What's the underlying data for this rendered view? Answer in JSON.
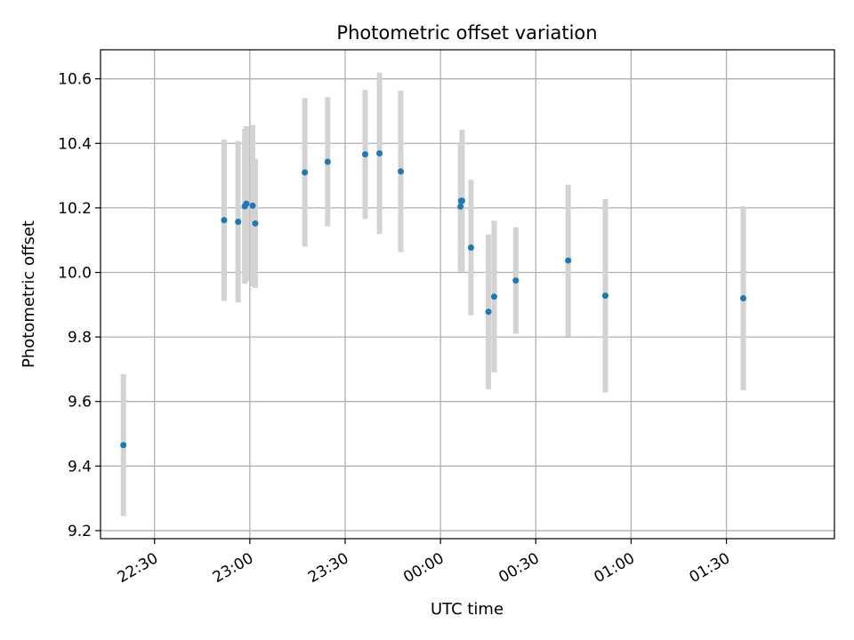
{
  "chart_data": {
    "type": "scatter",
    "title": "Photometric offset variation",
    "xlabel": "UTC time",
    "ylabel": "Photometric offset",
    "grid": true,
    "x_range": [
      "22:13",
      "02:04"
    ],
    "xlim": [
      1333,
      1564
    ],
    "ylim": [
      9.175,
      10.69
    ],
    "x_ticks": [
      {
        "label": "22:30",
        "value": 1350
      },
      {
        "label": "23:00",
        "value": 1380
      },
      {
        "label": "23:30",
        "value": 1410
      },
      {
        "label": "00:00",
        "value": 1440
      },
      {
        "label": "00:30",
        "value": 1470
      },
      {
        "label": "01:00",
        "value": 1500
      },
      {
        "label": "01:30",
        "value": 1530
      }
    ],
    "y_ticks": [
      {
        "label": "9.2",
        "value": 9.2
      },
      {
        "label": "9.4",
        "value": 9.4
      },
      {
        "label": "9.6",
        "value": 9.6
      },
      {
        "label": "9.8",
        "value": 9.8
      },
      {
        "label": "10.0",
        "value": 10.0
      },
      {
        "label": "10.2",
        "value": 10.2
      },
      {
        "label": "10.4",
        "value": 10.4
      },
      {
        "label": "10.6",
        "value": 10.6
      }
    ],
    "colors": {
      "points": "#1f77b4",
      "errorbars": "#d3d3d3",
      "grid": "#b0b0b0"
    },
    "points": [
      {
        "time": "22:20",
        "x": 1340.2,
        "y": 9.465,
        "err": 0.22
      },
      {
        "time": "22:52",
        "x": 1371.9,
        "y": 10.162,
        "err": 0.25
      },
      {
        "time": "22:56",
        "x": 1376.3,
        "y": 10.157,
        "err": 0.25
      },
      {
        "time": "22:58",
        "x": 1378.4,
        "y": 10.205,
        "err": 0.24
      },
      {
        "time": "22:59",
        "x": 1378.9,
        "y": 10.213,
        "err": 0.24
      },
      {
        "time": "23:01",
        "x": 1380.9,
        "y": 10.207,
        "err": 0.25
      },
      {
        "time": "23:02",
        "x": 1381.7,
        "y": 10.152,
        "err": 0.2
      },
      {
        "time": "23:17",
        "x": 1397.3,
        "y": 10.31,
        "err": 0.23
      },
      {
        "time": "23:24",
        "x": 1404.5,
        "y": 10.343,
        "err": 0.2
      },
      {
        "time": "23:36",
        "x": 1416.3,
        "y": 10.366,
        "err": 0.2
      },
      {
        "time": "23:41",
        "x": 1420.8,
        "y": 10.369,
        "err": 0.25
      },
      {
        "time": "23:48",
        "x": 1427.5,
        "y": 10.313,
        "err": 0.25
      },
      {
        "time": "00:06",
        "x": 1446.3,
        "y": 10.204,
        "err": 0.2
      },
      {
        "time": "00:06",
        "x": 1446.5,
        "y": 10.222,
        "err": 0.18
      },
      {
        "time": "00:07",
        "x": 1446.8,
        "y": 10.222,
        "err": 0.22
      },
      {
        "time": "00:10",
        "x": 1449.6,
        "y": 10.077,
        "err": 0.21
      },
      {
        "time": "00:15",
        "x": 1455.1,
        "y": 9.878,
        "err": 0.24
      },
      {
        "time": "00:17",
        "x": 1456.9,
        "y": 9.925,
        "err": 0.235
      },
      {
        "time": "00:24",
        "x": 1463.7,
        "y": 9.975,
        "err": 0.165
      },
      {
        "time": "00:40",
        "x": 1480.2,
        "y": 10.037,
        "err": 0.235
      },
      {
        "time": "00:52",
        "x": 1491.9,
        "y": 9.928,
        "err": 0.3
      },
      {
        "time": "01:35",
        "x": 1535.3,
        "y": 9.92,
        "err": 0.285
      }
    ]
  }
}
